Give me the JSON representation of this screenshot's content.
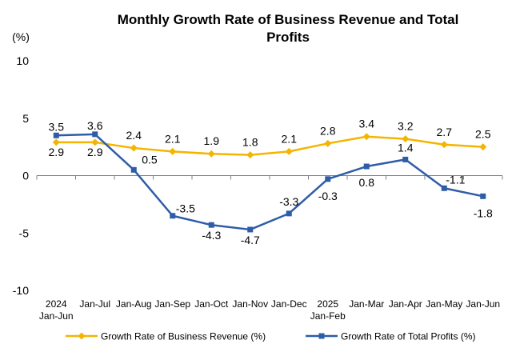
{
  "chart_data": {
    "type": "line",
    "title_lines": [
      "Monthly Growth Rate of Business Revenue and Total",
      "Profits"
    ],
    "ylabel": "(%)",
    "ylim": [
      -10,
      10
    ],
    "yticks": [
      10,
      5,
      0,
      -5,
      -10
    ],
    "categories": [
      [
        "2024",
        "Jan-Jun"
      ],
      [
        "Jan-Jul"
      ],
      [
        "Jan-Aug"
      ],
      [
        "Jan-Sep"
      ],
      [
        "Jan-Oct"
      ],
      [
        "Jan-Nov"
      ],
      [
        "Jan-Dec"
      ],
      [
        "2025",
        "Jan-Feb"
      ],
      [
        "Jan-Mar"
      ],
      [
        "Jan-Apr"
      ],
      [
        "Jan-May"
      ],
      [
        "Jan-Jun"
      ]
    ],
    "series": [
      {
        "name": "Growth Rate of Business Revenue (%)",
        "color": "#F5B400",
        "marker": "diamond",
        "values": [
          2.9,
          2.9,
          2.4,
          2.1,
          1.9,
          1.8,
          2.1,
          2.8,
          3.4,
          3.2,
          2.7,
          2.5
        ],
        "labels": [
          "2.9",
          "2.9",
          "2.4",
          "2.1",
          "1.9",
          "1.8",
          "2.1",
          "2.8",
          "3.4",
          "3.2",
          "2.7",
          "2.5"
        ]
      },
      {
        "name": "Growth Rate of Total Profits (%)",
        "color": "#2E5DA8",
        "marker": "square",
        "values": [
          3.5,
          3.6,
          0.5,
          -3.5,
          -4.3,
          -4.7,
          -3.3,
          -0.3,
          0.8,
          1.4,
          -1.1,
          -1.8
        ],
        "labels": [
          "3.5",
          "3.6",
          "0.5",
          "-3.5",
          "-4.3",
          "-4.7",
          "-3.3",
          "-0.3",
          "0.8",
          "1.4",
          "-1.1",
          "-1.8"
        ]
      }
    ],
    "legend_position": "bottom"
  }
}
